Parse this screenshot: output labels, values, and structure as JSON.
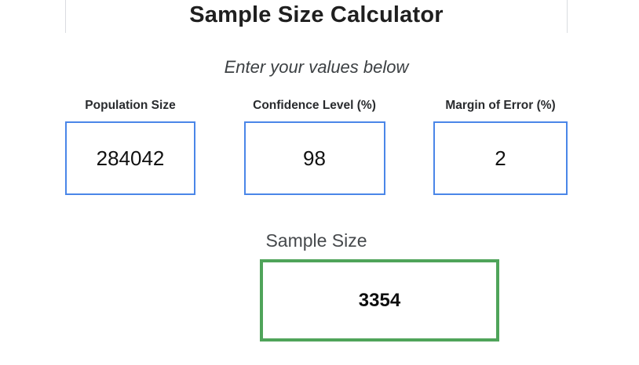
{
  "page": {
    "title": "Sample Size Calculator",
    "subtitle": "Enter your values below"
  },
  "fields": [
    {
      "label": "Population Size",
      "value": "284042"
    },
    {
      "label": "Confidence Level (%)",
      "value": "98"
    },
    {
      "label": "Margin of Error (%)",
      "value": "2"
    }
  ],
  "result": {
    "label": "Sample Size",
    "value": "3354"
  },
  "colors": {
    "input_border": "#4a86e8",
    "result_border": "#4fa45a",
    "title_text": "#1f1f1f",
    "muted_text": "#3c4043",
    "frame_edge": "#dadce0"
  }
}
